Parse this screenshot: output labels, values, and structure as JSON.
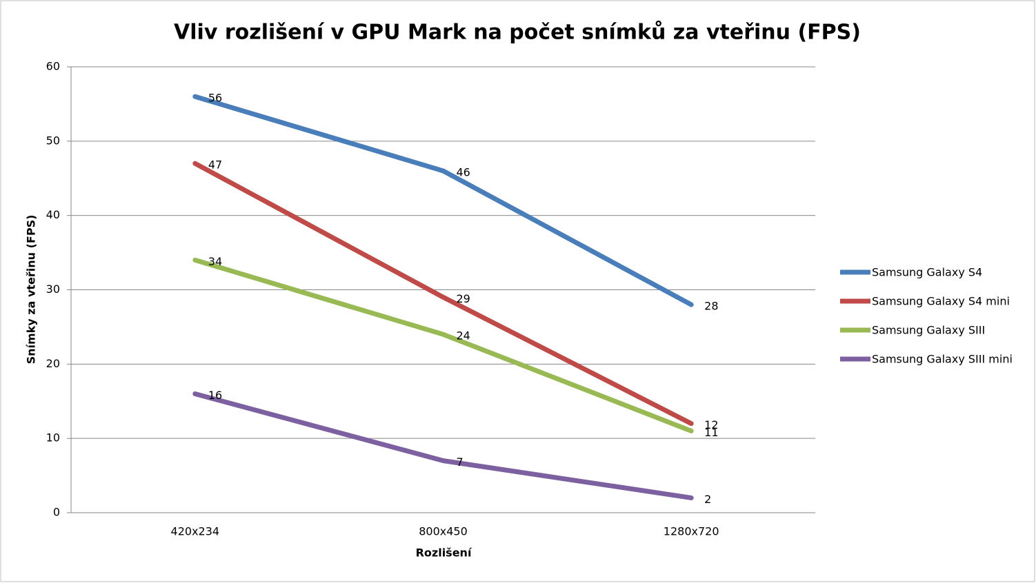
{
  "chart_data": {
    "type": "line",
    "title": "Vliv rozlišení v GPU Mark na počet snímků za vteřinu (FPS)",
    "x_label": "Rozlišení",
    "y_label": "Snímky za vteřinu (FPS)",
    "categories": [
      "420x234",
      "800x450",
      "1280x720"
    ],
    "series": [
      {
        "name": "Samsung Galaxy S4",
        "color": "#4a7ebb",
        "values": [
          56,
          46,
          28
        ]
      },
      {
        "name": "Samsung Galaxy S4 mini",
        "color": "#be4b48",
        "values": [
          47,
          29,
          12
        ]
      },
      {
        "name": "Samsung Galaxy SIII",
        "color": "#98b954",
        "values": [
          34,
          24,
          11
        ]
      },
      {
        "name": "Samsung Galaxy SIII mini",
        "color": "#7d60a0",
        "values": [
          16,
          7,
          2
        ]
      }
    ],
    "ylim": [
      0,
      60
    ],
    "yticks": [
      0,
      10,
      20,
      30,
      40,
      50,
      60
    ],
    "grid": true,
    "legend": "right"
  }
}
